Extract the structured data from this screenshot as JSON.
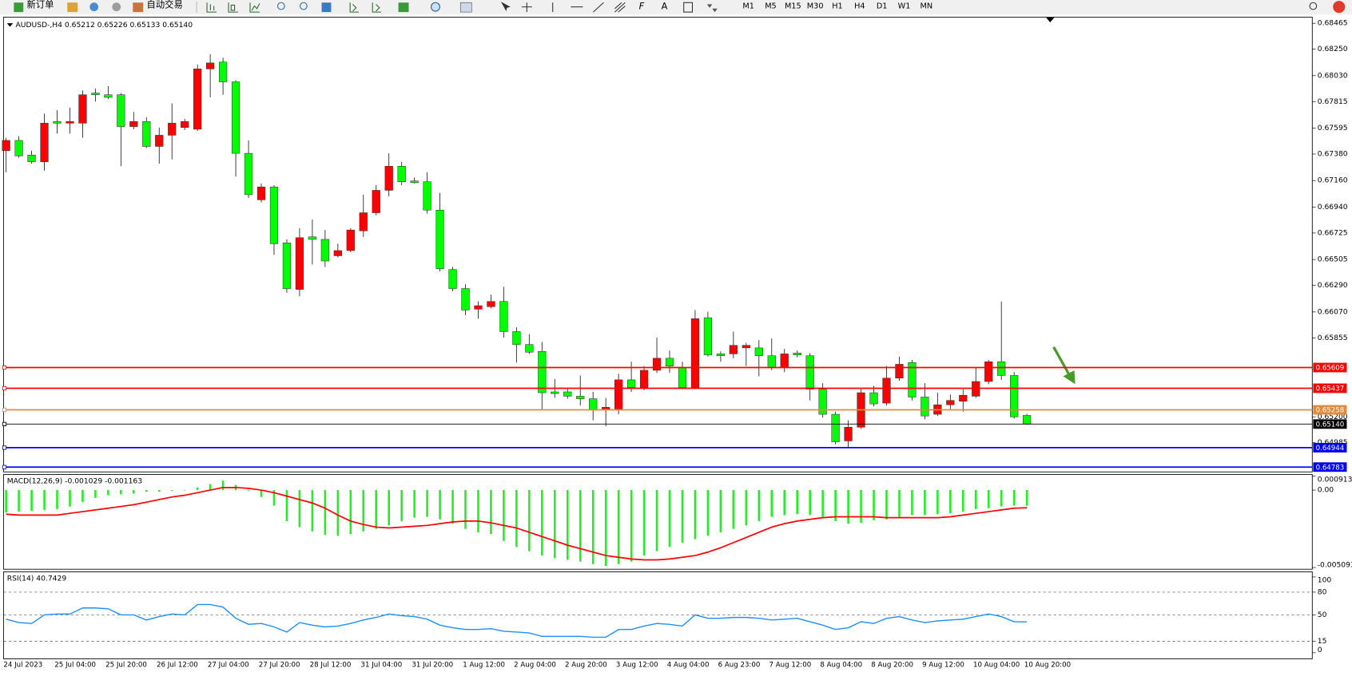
{
  "toolbar": {
    "new_order": "新订单",
    "auto_trading": "自动交易",
    "text_tool": "A",
    "timeframes": [
      "M1",
      "M5",
      "M15",
      "M30",
      "H1",
      "H4",
      "D1",
      "W1",
      "MN"
    ]
  },
  "chart_data": [
    {
      "type": "candlestick",
      "title": "AUDUSD-,H4  0.65212 0.65226 0.65133 0.65140",
      "categories": [
        "24 Jul 2023",
        null,
        null,
        null,
        "25 Jul 04:00",
        null,
        null,
        null,
        "25 Jul 20:00",
        null,
        null,
        null,
        "26 Jul 12:00",
        null,
        null,
        null,
        "27 Jul 04:00",
        null,
        null,
        null,
        "27 Jul 20:00",
        null,
        null,
        null,
        "28 Jul 12:00",
        null,
        null,
        null,
        "31 Jul 04:00",
        null,
        null,
        null,
        "31 Jul 20:00",
        null,
        null,
        null,
        "1 Aug 12:00",
        null,
        null,
        null,
        "2 Aug 04:00",
        null,
        null,
        null,
        "2 Aug 20:00",
        null,
        null,
        null,
        "3 Aug 12:00",
        null,
        null,
        null,
        "4 Aug 04:00",
        null,
        null,
        null,
        "6 Aug 23:00",
        null,
        null,
        null,
        "7 Aug 12:00",
        null,
        null,
        null,
        "8 Aug 04:00",
        null,
        null,
        null,
        "8 Aug 20:00",
        null,
        null,
        null,
        "9 Aug 12:00",
        null,
        null,
        null,
        "10 Aug 04:00",
        null,
        null,
        null,
        "10 Aug 20:00"
      ],
      "open": [
        0.67408,
        0.67493,
        0.67372,
        0.67315,
        0.6765,
        0.67636,
        0.67636,
        0.67886,
        0.67872,
        0.67872,
        0.67608,
        0.6765,
        0.67443,
        0.67536,
        0.676,
        0.67586,
        0.68086,
        0.68143,
        0.67979,
        0.67386,
        0.67,
        0.67107,
        0.66643,
        0.66257,
        0.66693,
        0.66672,
        0.66536,
        0.66579,
        0.66743,
        0.66893,
        0.67079,
        0.67279,
        0.67157,
        0.6715,
        0.66915,
        0.66422,
        0.66264,
        0.66093,
        0.66114,
        0.66157,
        0.65907,
        0.658,
        0.65743,
        0.65407,
        0.65407,
        0.65371,
        0.6535,
        0.65257,
        0.65264,
        0.65507,
        0.65443,
        0.65586,
        0.65686,
        0.65607,
        0.65443,
        0.66022,
        0.65722,
        0.65722,
        0.65772,
        0.65772,
        0.65707,
        0.65607,
        0.65729,
        0.65707,
        0.65429,
        0.65221,
        0.65,
        0.65114,
        0.654,
        0.65314,
        0.65521,
        0.6565,
        0.65364,
        0.65221,
        0.653,
        0.65329,
        0.65371,
        0.65493,
        0.65657,
        0.65543,
        0.65212
      ],
      "high": [
        0.67515,
        0.67529,
        0.67408,
        0.67715,
        0.67743,
        0.67765,
        0.67908,
        0.67922,
        0.67943,
        0.67886,
        0.67729,
        0.67686,
        0.676,
        0.678,
        0.67672,
        0.68122,
        0.68208,
        0.68179,
        0.67993,
        0.67493,
        0.67136,
        0.67122,
        0.66672,
        0.66765,
        0.66836,
        0.6675,
        0.66636,
        0.66765,
        0.67043,
        0.67122,
        0.67386,
        0.67315,
        0.67186,
        0.67229,
        0.67057,
        0.66443,
        0.663,
        0.66157,
        0.66214,
        0.66279,
        0.65943,
        0.65886,
        0.65822,
        0.65514,
        0.65443,
        0.65543,
        0.65407,
        0.65357,
        0.65557,
        0.65657,
        0.65621,
        0.65857,
        0.6575,
        0.65657,
        0.66086,
        0.66072,
        0.65743,
        0.65907,
        0.65814,
        0.65836,
        0.6585,
        0.65764,
        0.6575,
        0.65729,
        0.65479,
        0.65243,
        0.65171,
        0.65429,
        0.65457,
        0.65621,
        0.657,
        0.65672,
        0.65479,
        0.654,
        0.65386,
        0.65429,
        0.65614,
        0.65672,
        0.66157,
        0.65571,
        0.65226
      ],
      "low": [
        0.67229,
        0.6735,
        0.673,
        0.67243,
        0.6755,
        0.6755,
        0.67515,
        0.67815,
        0.67836,
        0.67279,
        0.67586,
        0.67429,
        0.673,
        0.67336,
        0.67579,
        0.67572,
        0.6785,
        0.67872,
        0.67193,
        0.67015,
        0.66979,
        0.66543,
        0.66229,
        0.662,
        0.66464,
        0.66443,
        0.66522,
        0.66565,
        0.66693,
        0.66872,
        0.67029,
        0.67122,
        0.67136,
        0.66886,
        0.66407,
        0.66243,
        0.66043,
        0.66014,
        0.661,
        0.65857,
        0.6565,
        0.65722,
        0.65257,
        0.65357,
        0.6535,
        0.65293,
        0.65171,
        0.65121,
        0.65221,
        0.65407,
        0.65421,
        0.65564,
        0.65564,
        0.65429,
        0.65429,
        0.657,
        0.65657,
        0.65686,
        0.65621,
        0.65536,
        0.65586,
        0.65571,
        0.65693,
        0.65336,
        0.65193,
        0.64971,
        0.64943,
        0.651,
        0.65286,
        0.65293,
        0.655,
        0.65336,
        0.65179,
        0.65207,
        0.65264,
        0.65243,
        0.65357,
        0.65471,
        0.65507,
        0.65186,
        0.65133
      ],
      "close": [
        0.67493,
        0.67365,
        0.67315,
        0.67636,
        0.67636,
        0.6765,
        0.67872,
        0.67872,
        0.6785,
        0.67608,
        0.6765,
        0.67443,
        0.67536,
        0.67636,
        0.6765,
        0.68086,
        0.68136,
        0.67979,
        0.67386,
        0.67043,
        0.67107,
        0.66636,
        0.66264,
        0.66686,
        0.66672,
        0.66493,
        0.66579,
        0.6675,
        0.66893,
        0.67079,
        0.67279,
        0.6715,
        0.67143,
        0.66915,
        0.66429,
        0.66264,
        0.66086,
        0.66122,
        0.66157,
        0.65907,
        0.658,
        0.65736,
        0.654,
        0.65393,
        0.65371,
        0.6535,
        0.65257,
        0.65279,
        0.65507,
        0.65443,
        0.65586,
        0.65686,
        0.65621,
        0.65443,
        0.66014,
        0.65714,
        0.65707,
        0.65793,
        0.65793,
        0.65707,
        0.65607,
        0.65722,
        0.65714,
        0.65429,
        0.65221,
        0.64993,
        0.65114,
        0.654,
        0.65307,
        0.65521,
        0.65636,
        0.65364,
        0.65207,
        0.653,
        0.65336,
        0.65379,
        0.65493,
        0.65657,
        0.65543,
        0.652,
        0.6514
      ],
      "up_color": "#ff0000",
      "down_color": "#00ff00",
      "ylim": [
        0.64743,
        0.68515
      ],
      "yticks": [
        0.68465,
        {
          "value": 0.6825,
          "label": "0.68250"
        },
        {
          "value": 0.6803,
          "label": "0.68030"
        },
        0.67815,
        0.67595,
        {
          "value": 0.6738,
          "label": "0.67380"
        },
        {
          "value": 0.6716,
          "label": "0.67160"
        },
        {
          "value": 0.6694,
          "label": "0.66940"
        },
        0.66725,
        0.66505,
        {
          "value": 0.6629,
          "label": "0.66290"
        },
        {
          "value": 0.6607,
          "label": "0.66070"
        },
        0.65855,
        {
          "value": 0.652,
          "label": "0.65200"
        },
        0.64985
      ],
      "levels": [
        {
          "value": 0.65609,
          "color": "#ff0000"
        },
        {
          "value": 0.65437,
          "color": "#ff0000"
        },
        {
          "value": 0.65258,
          "color": "#e08a3c"
        },
        {
          "value": 0.6514,
          "label": "0.65140",
          "color": "#000000"
        },
        {
          "value": 0.64944,
          "color": "#0000ff"
        },
        {
          "value": 0.64783,
          "color": "#0000ff"
        }
      ]
    },
    {
      "type": "macd",
      "title": "MACD(12,26,9) -0.001029 -0.001163",
      "series": [
        {
          "type": "bar",
          "color": "#22ee22",
          "values": [
            -0.001473,
            -0.001417,
            -0.00136,
            -0.001303,
            -0.001247,
            -0.001077,
            -0.000793,
            -0.00051,
            -0.00034,
            -0.000283,
            -0.000227,
            -0.000113,
            -0.000113,
            -5.7e-05,
            0,
            0.00017,
            0.000397,
            0.000623,
            0.00034,
            -5.7e-05,
            -0.000453,
            -0.00102,
            -0.00204,
            -0.002436,
            -0.00272,
            -0.002946,
            -0.003003,
            -0.00289,
            -0.00272,
            -0.00255,
            -0.002323,
            -0.00204,
            -0.001813,
            -0.001756,
            -0.001926,
            -0.00221,
            -0.00255,
            -0.002776,
            -0.00289,
            -0.003343,
            -0.00374,
            -0.004023,
            -0.004306,
            -0.004476,
            -0.00459,
            -0.004703,
            -0.004873,
            -0.004986,
            -0.004873,
            -0.004703,
            -0.004306,
            -0.004023,
            -0.00374,
            -0.003456,
            -0.00323,
            -0.003003,
            -0.002776,
            -0.00255,
            -0.002323,
            -0.00204,
            -0.001756,
            -0.001643,
            -0.001586,
            -0.001643,
            -0.001756,
            -0.00204,
            -0.00221,
            -0.002153,
            -0.001983,
            -0.001926,
            -0.001756,
            -0.001643,
            -0.001643,
            -0.001586,
            -0.00153,
            -0.001417,
            -0.001247,
            -0.00119,
            -0.001077,
            -0.00102,
            -0.001029
          ]
        },
        {
          "type": "line",
          "color": "#ff0000",
          "values": [
            -0.001586,
            -0.001643,
            -0.001643,
            -0.001643,
            -0.001643,
            -0.00153,
            -0.001417,
            -0.001303,
            -0.00119,
            -0.001077,
            -0.000963,
            -0.000793,
            -0.000623,
            -0.000453,
            -0.00034,
            -0.00017,
            0,
            0.00017,
            0.00017,
            0.000113,
            0,
            -0.00017,
            -0.000397,
            -0.000623,
            -0.00085,
            -0.00119,
            -0.001643,
            -0.00204,
            -0.002266,
            -0.002436,
            -0.002493,
            -0.002436,
            -0.00238,
            -0.002323,
            -0.00221,
            -0.002096,
            -0.00204,
            -0.00204,
            -0.002153,
            -0.002323,
            -0.002493,
            -0.002776,
            -0.00306,
            -0.003343,
            -0.003626,
            -0.003853,
            -0.00408,
            -0.004306,
            -0.00442,
            -0.004533,
            -0.00459,
            -0.00459,
            -0.004533,
            -0.00442,
            -0.004306,
            -0.00408,
            -0.003796,
            -0.003456,
            -0.003116,
            -0.002776,
            -0.002436,
            -0.00221,
            -0.00204,
            -0.001926,
            -0.001813,
            -0.001756,
            -0.001756,
            -0.001756,
            -0.001756,
            -0.001813,
            -0.001813,
            -0.001813,
            -0.001813,
            -0.001813,
            -0.001756,
            -0.001643,
            -0.00153,
            -0.001417,
            -0.001303,
            -0.00119,
            -0.001163
          ]
        }
      ],
      "ylim": [
        -0.005093,
        0.000913
      ],
      "yticks": [
        0.000913,
        {
          "value": 0,
          "label": "0.00"
        },
        -0.005093
      ]
    },
    {
      "type": "line",
      "title": "RSI(14) 40.7429",
      "color": "#1e8fff",
      "values": [
        44.3,
        39.8,
        38.6,
        50,
        51.1,
        51.1,
        59.1,
        59.1,
        58,
        50,
        50,
        43.2,
        47.7,
        51.1,
        50,
        63.6,
        63.6,
        60.2,
        45.5,
        37.5,
        38.6,
        34.1,
        27.3,
        39.8,
        36.4,
        34.1,
        35.2,
        38.6,
        43.2,
        46.6,
        51.1,
        48.9,
        47.7,
        44.3,
        36.4,
        33,
        30.7,
        30.7,
        31.8,
        28.4,
        27.3,
        26.1,
        21.6,
        21.6,
        21.6,
        21.6,
        20.5,
        20.5,
        30.7,
        30.7,
        35.2,
        38.6,
        37.5,
        35.2,
        50,
        45.5,
        45.5,
        46.6,
        46.6,
        45.5,
        43.2,
        44.3,
        45.5,
        40.9,
        36.4,
        30.7,
        33,
        40.9,
        38.6,
        45.5,
        47.7,
        43.2,
        39.8,
        42,
        43.2,
        44.3,
        47.7,
        51.1,
        47.7,
        40.9,
        40.7429
      ],
      "ylim": [
        0,
        100
      ],
      "yticks": [
        100,
        80,
        50,
        15,
        0
      ]
    }
  ]
}
